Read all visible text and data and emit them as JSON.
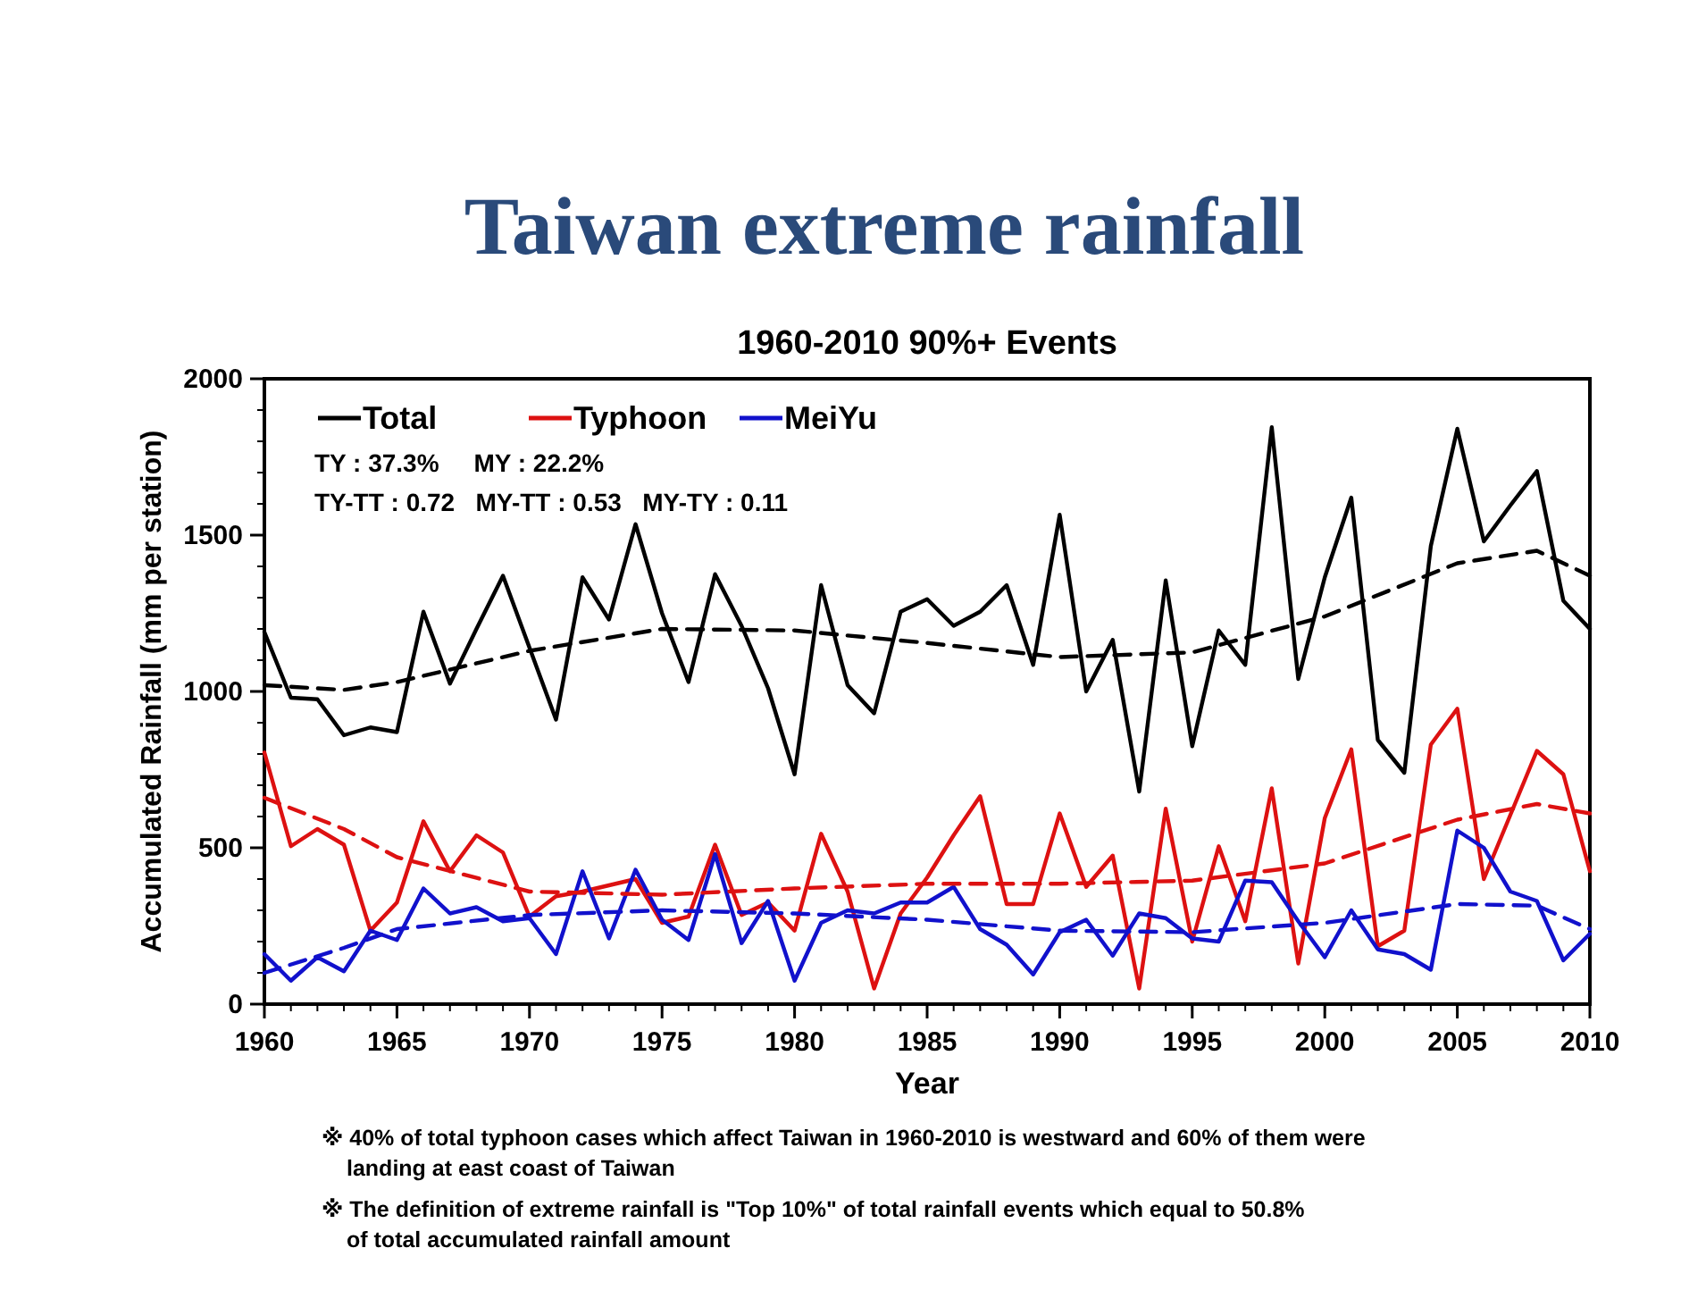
{
  "chart_data": {
    "type": "line",
    "title": "Taiwan extreme rainfall",
    "subtitle": "1960-2010 90%+ Events",
    "xlabel": "Year",
    "ylabel": "Accumulated Rainfall  (mm per station)",
    "x": [
      1960,
      1961,
      1962,
      1963,
      1964,
      1965,
      1966,
      1967,
      1968,
      1969,
      1970,
      1971,
      1972,
      1973,
      1974,
      1975,
      1976,
      1977,
      1978,
      1979,
      1980,
      1981,
      1982,
      1983,
      1984,
      1985,
      1986,
      1987,
      1988,
      1989,
      1990,
      1991,
      1992,
      1993,
      1994,
      1995,
      1996,
      1997,
      1998,
      1999,
      2000,
      2001,
      2002,
      2003,
      2004,
      2005,
      2006,
      2007,
      2008,
      2009,
      2010
    ],
    "series": [
      {
        "name": "Total",
        "color": "#000000",
        "line_style": "solid",
        "values": [
          1190,
          980,
          975,
          860,
          885,
          870,
          1255,
          1025,
          1200,
          1370,
          1140,
          910,
          1365,
          1230,
          1535,
          1250,
          1030,
          1375,
          1210,
          1010,
          735,
          1340,
          1020,
          930,
          1255,
          1295,
          1210,
          1255,
          1340,
          1085,
          1565,
          1000,
          1165,
          680,
          1355,
          825,
          1195,
          1085,
          1845,
          1040,
          1365,
          1620,
          845,
          740,
          1465,
          1840,
          1480,
          1595,
          1705,
          1290,
          1200
        ]
      },
      {
        "name": "Typhoon",
        "color": "#dd1111",
        "line_style": "solid",
        "values": [
          805,
          505,
          560,
          510,
          235,
          325,
          585,
          425,
          540,
          485,
          280,
          345,
          360,
          380,
          400,
          260,
          280,
          510,
          285,
          325,
          235,
          545,
          360,
          50,
          290,
          405,
          540,
          665,
          320,
          320,
          610,
          375,
          475,
          50,
          625,
          200,
          505,
          265,
          690,
          130,
          595,
          815,
          185,
          235,
          830,
          945,
          400,
          605,
          810,
          735,
          425
        ]
      },
      {
        "name": "MeiYu",
        "color": "#1111cc",
        "line_style": "solid",
        "values": [
          160,
          75,
          150,
          105,
          235,
          205,
          370,
          290,
          310,
          265,
          275,
          160,
          425,
          210,
          430,
          270,
          205,
          480,
          195,
          330,
          75,
          260,
          300,
          290,
          325,
          325,
          375,
          240,
          190,
          95,
          230,
          270,
          155,
          290,
          275,
          210,
          200,
          395,
          390,
          265,
          150,
          300,
          175,
          160,
          110,
          555,
          500,
          360,
          330,
          140,
          225
        ]
      },
      {
        "color": "#000000",
        "line_style": "dashed",
        "x": [
          1960,
          1963,
          1965,
          1970,
          1975,
          1980,
          1985,
          1990,
          1995,
          2000,
          2005,
          2008,
          2010
        ],
        "values": [
          1020,
          1005,
          1030,
          1130,
          1200,
          1195,
          1155,
          1110,
          1125,
          1240,
          1410,
          1450,
          1370
        ]
      },
      {
        "color": "#dd1111",
        "line_style": "dashed",
        "x": [
          1960,
          1963,
          1965,
          1970,
          1975,
          1980,
          1985,
          1990,
          1995,
          2000,
          2005,
          2008,
          2010
        ],
        "values": [
          660,
          560,
          470,
          360,
          350,
          370,
          385,
          385,
          395,
          450,
          590,
          640,
          610
        ]
      },
      {
        "color": "#1111cc",
        "line_style": "dashed",
        "x": [
          1960,
          1963,
          1965,
          1970,
          1975,
          1980,
          1985,
          1990,
          1995,
          2000,
          2005,
          2008,
          2010
        ],
        "values": [
          100,
          180,
          240,
          285,
          300,
          290,
          270,
          235,
          230,
          260,
          320,
          315,
          240
        ]
      }
    ],
    "xlim": [
      1960,
      2010
    ],
    "xticks": [
      1960,
      1965,
      1970,
      1975,
      1980,
      1985,
      1990,
      1995,
      2000,
      2005,
      2010
    ],
    "ylim": [
      0,
      2000
    ],
    "yticks": [
      0,
      500,
      1000,
      1500,
      2000
    ],
    "legend": "top left",
    "grid": false,
    "marker": "none",
    "annotations": [
      "TY : 37.3%     MY : 22.2%",
      "TY-TT : 0.72   MY-TT : 0.53   MY-TY : 0.11",
      "※ 40% of total typhoon cases which affect Taiwan in 1960-2010 is westward and 60% of them were landing at east coast of Taiwan",
      "※ The definition of extreme rainfall is \"Top 10%\" of total rainfall events which equal to 50.8% of total accumulated rainfall amount"
    ]
  }
}
